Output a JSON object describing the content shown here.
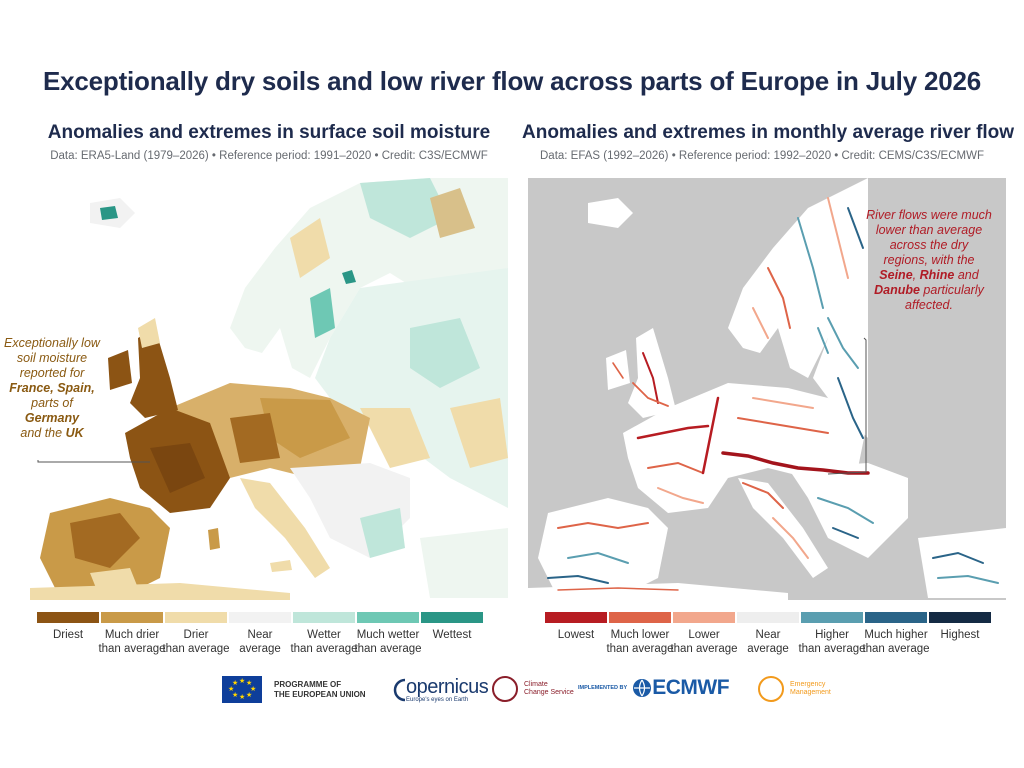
{
  "title": "Exceptionally dry soils and low river flow across parts of Europe in July 2026",
  "left_panel": {
    "title": "Anomalies and extremes in surface soil moisture",
    "subtitle": "Data: ERA5-Land (1979–2026) • Reference period: 1991–2020 • Credit: C3S/ECMWF",
    "annotation": {
      "line1": "Exceptionally low",
      "line2": "soil moisture",
      "line3": "reported for",
      "bold1": "France, Spain,",
      "line4": "parts of ",
      "bold2": "Germany",
      "line5": "and the ",
      "bold3": "UK"
    },
    "legend": [
      {
        "line1": "Driest",
        "line2": "",
        "color": "#8c5414"
      },
      {
        "line1": "Much drier",
        "line2": "than average",
        "color": "#c99a48"
      },
      {
        "line1": "Drier",
        "line2": "than average",
        "color": "#f0dcaa"
      },
      {
        "line1": "Near",
        "line2": "average",
        "color": "#f2f2f2"
      },
      {
        "line1": "Wetter",
        "line2": "than average",
        "color": "#bfe6da"
      },
      {
        "line1": "Much wetter",
        "line2": "than average",
        "color": "#6ec8b4"
      },
      {
        "line1": "Wettest",
        "line2": "",
        "color": "#2a9686"
      }
    ]
  },
  "right_panel": {
    "title": "Anomalies and extremes in monthly average river flow",
    "subtitle": "Data: EFAS (1992–2026) • Reference period: 1992–2020 • Credit: CEMS/C3S/ECMWF",
    "annotation": {
      "line1": "River flows were much",
      "line2": "lower than average",
      "line3": "across the dry",
      "line4": "regions, with the",
      "bold1": "Seine",
      "sep1": ", ",
      "bold2": "Rhine",
      "sep2": " and",
      "bold3": "Danube",
      "line5": " particularly",
      "line6": "affected."
    },
    "legend": [
      {
        "line1": "Lowest",
        "line2": "",
        "color": "#b71c22"
      },
      {
        "line1": "Much lower",
        "line2": "than average",
        "color": "#de6448"
      },
      {
        "line1": "Lower",
        "line2": "than average",
        "color": "#f2a78c"
      },
      {
        "line1": "Near",
        "line2": "average",
        "color": "#eeeeee"
      },
      {
        "line1": "Higher",
        "line2": "than average",
        "color": "#5a9eb0"
      },
      {
        "line1": "Much higher",
        "line2": "than average",
        "color": "#2a6488"
      },
      {
        "line1": "Highest",
        "line2": "",
        "color": "#142a44"
      }
    ]
  },
  "logos": {
    "eu_line1": "PROGRAMME OF",
    "eu_line2": "THE EUROPEAN UNION",
    "copernicus": "opernicus",
    "copernicus_sub": "Europe's eyes on Earth",
    "c3s_line1": "Climate",
    "c3s_line2": "Change Service",
    "implemented_by": "IMPLEMENTED BY",
    "ecmwf": "ECMWF",
    "em_line1": "Emergency",
    "em_line2": "Management"
  },
  "colors": {
    "land_base_left": "#f7f1e3",
    "land_base_right": "#ffffff",
    "sea_right": "#c8c8c8"
  }
}
